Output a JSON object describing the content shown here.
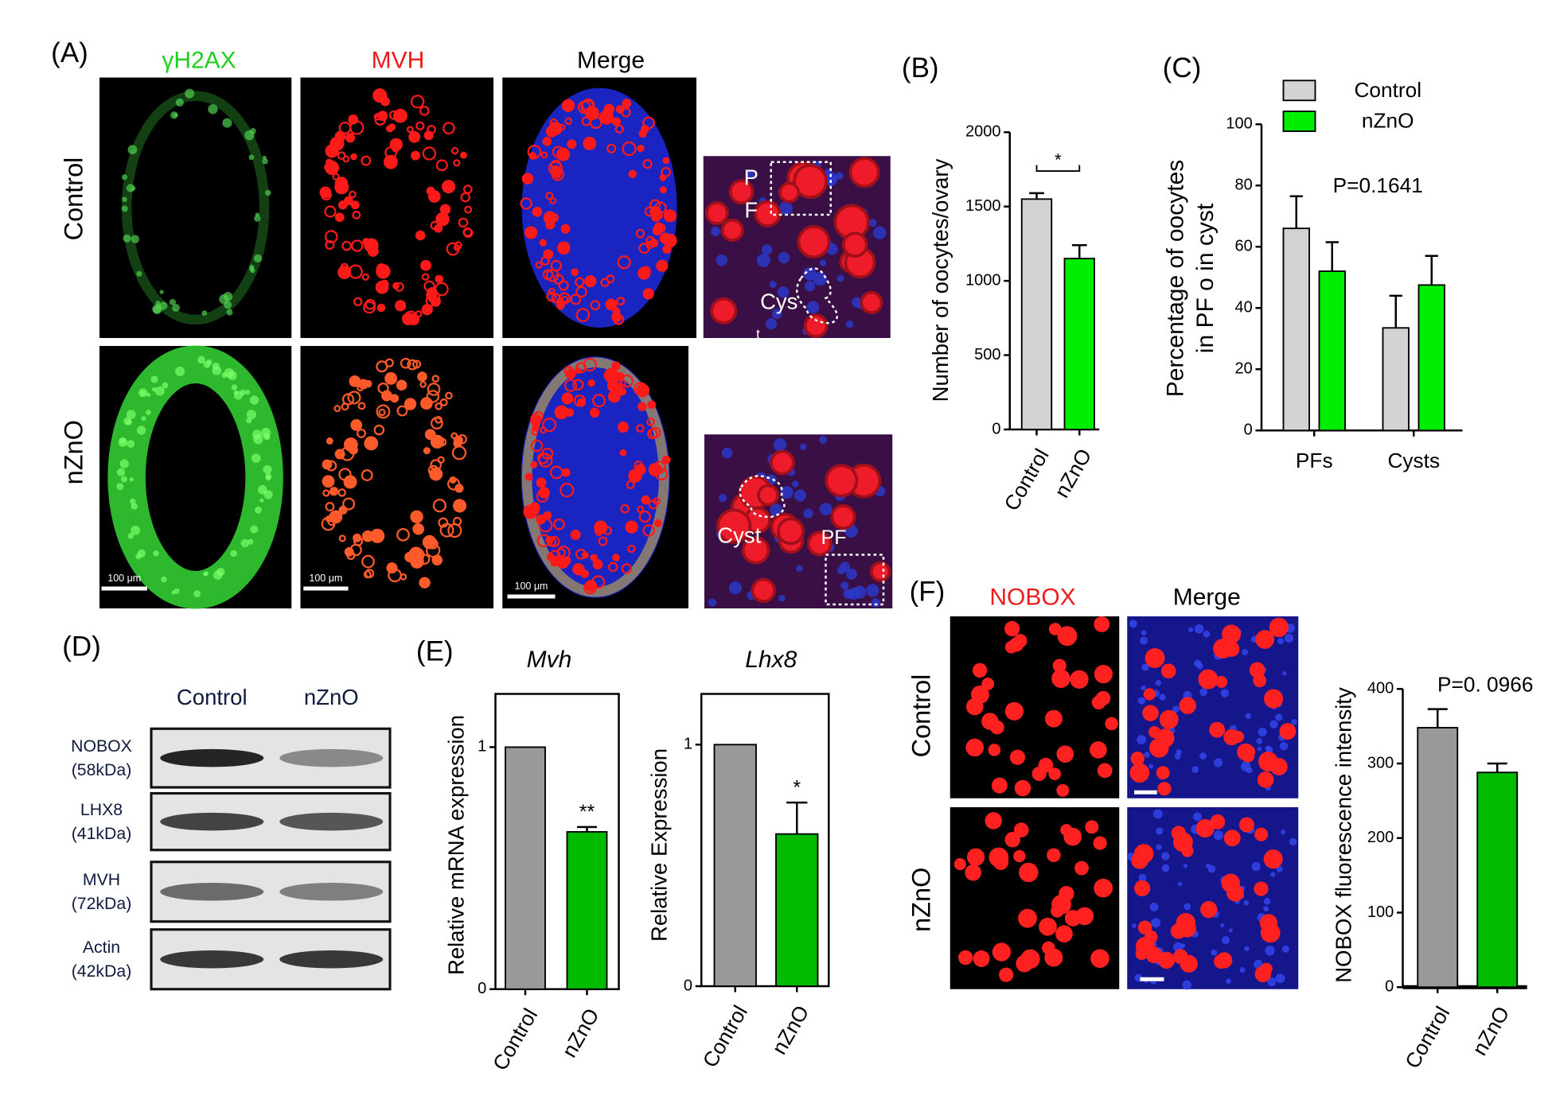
{
  "chart_data": [
    {
      "type": "bar",
      "panel_label": "(B)",
      "y_label": "Number of oocytes/ovary",
      "categories": [
        "Control",
        "nZnO"
      ],
      "values": [
        1550,
        1150
      ],
      "errors": [
        40,
        90
      ],
      "colors": [
        "#d3d3d3",
        "#00ee00"
      ],
      "ylim": [
        0,
        2000
      ],
      "yticks": [
        0,
        500,
        1000,
        1500,
        2000
      ],
      "significance": "*"
    },
    {
      "type": "bar",
      "panel_label": "(C)",
      "y_label": [
        "Percentage of oocytes",
        "in PF o in cyst"
      ],
      "categories": [
        "PFs",
        "Cysts"
      ],
      "series": [
        {
          "name": "Control",
          "color": "#d3d3d3",
          "values": [
            66,
            33.5
          ],
          "errors": [
            10.5,
            10.5
          ]
        },
        {
          "name": "nZnO",
          "color": "#00ee00",
          "values": [
            52,
            47.5
          ],
          "errors": [
            9.5,
            9.5
          ]
        }
      ],
      "ylim": [
        0,
        100
      ],
      "yticks": [
        0,
        20,
        40,
        60,
        80,
        100
      ],
      "annotation": "P=0.1641",
      "legend": "top-left"
    },
    {
      "type": "bar",
      "panel_label": "(E)",
      "title": "Mvh",
      "y_label": "Relative mRNA expression",
      "categories": [
        "Control",
        "nZnO"
      ],
      "values": [
        1,
        0.65
      ],
      "errors": [
        null,
        0.02
      ],
      "colors": [
        "#999999",
        "#00bb00"
      ],
      "ylim": [
        0,
        1.22
      ],
      "yticks": [
        0,
        1
      ],
      "significance_labels": [
        null,
        "**"
      ]
    },
    {
      "type": "bar",
      "title": "Lhx8",
      "y_label": "Relative Expression",
      "categories": [
        "Control",
        "nZnO"
      ],
      "values": [
        1,
        0.63
      ],
      "errors": [
        null,
        0.13
      ],
      "colors": [
        "#999999",
        "#00bb00"
      ],
      "ylim": [
        0,
        1.21
      ],
      "yticks": [
        0,
        1
      ],
      "significance_labels": [
        null,
        "*"
      ]
    },
    {
      "type": "bar",
      "y_label": "NOBOX fluorescence intensity",
      "categories": [
        "Control",
        "nZnO"
      ],
      "values": [
        348,
        288
      ],
      "errors": [
        25,
        12
      ],
      "colors": [
        "#999999",
        "#00bb00"
      ],
      "ylim": [
        0,
        400
      ],
      "yticks": [
        0,
        100,
        200,
        300,
        400
      ],
      "annotation": "P=0. 0966"
    }
  ],
  "figure": {
    "panel_a": {
      "label": "(A)",
      "columns": [
        "γH2AX",
        "MVH",
        "Merge"
      ],
      "rows": [
        "Control",
        "nZnO"
      ],
      "scale_bar": "100 μm",
      "inset_top": [
        "P",
        "F",
        "Cys",
        "t"
      ],
      "inset_bottom": [
        "Cyst",
        "PF"
      ]
    },
    "panel_d": {
      "label": "(D)",
      "columns": [
        "Control",
        "nZnO"
      ],
      "blots": [
        [
          "NOBOX",
          "(58kDa)"
        ],
        [
          "LHX8",
          "(41kDa)"
        ],
        [
          "MVH",
          "(72kDa)"
        ],
        [
          "Actin",
          "(42kDa)"
        ]
      ]
    },
    "panel_f": {
      "label": "(F)",
      "columns": [
        "NOBOX",
        "Merge"
      ],
      "rows": [
        "Control",
        "nZnO"
      ]
    }
  }
}
